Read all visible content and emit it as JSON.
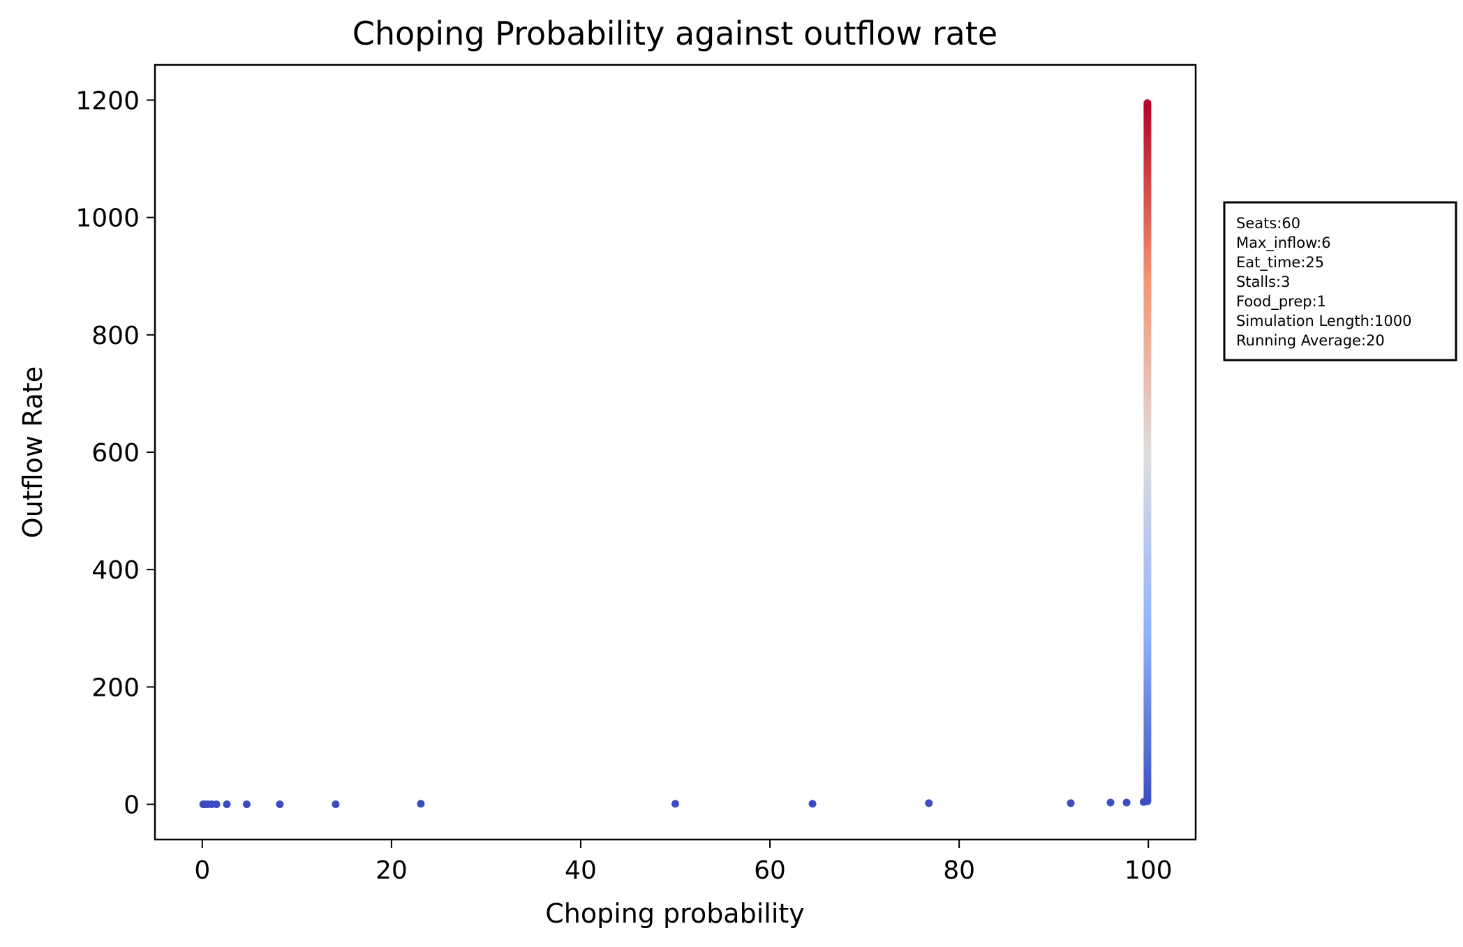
{
  "chart_data": {
    "type": "scatter",
    "title": "Choping Probability against outflow rate",
    "xlabel": "Choping probability",
    "ylabel": "Outflow Rate",
    "xlim": [
      -5,
      105
    ],
    "ylim": [
      -60,
      1260
    ],
    "x_ticks": [
      0,
      20,
      40,
      60,
      80,
      100
    ],
    "y_ticks": [
      0,
      200,
      400,
      600,
      800,
      1000,
      1200
    ],
    "colormap": "coolwarm",
    "color_by": "y",
    "color_range": [
      0,
      1200
    ],
    "points": [
      {
        "x": 0.1,
        "y": 0
      },
      {
        "x": 0.3,
        "y": 0
      },
      {
        "x": 0.6,
        "y": 0
      },
      {
        "x": 1.0,
        "y": 0
      },
      {
        "x": 1.5,
        "y": 0
      },
      {
        "x": 2.6,
        "y": 0
      },
      {
        "x": 4.7,
        "y": 0
      },
      {
        "x": 8.2,
        "y": 0
      },
      {
        "x": 14.1,
        "y": 0
      },
      {
        "x": 23.1,
        "y": 1
      },
      {
        "x": 50.0,
        "y": 1
      },
      {
        "x": 64.5,
        "y": 1
      },
      {
        "x": 76.8,
        "y": 2
      },
      {
        "x": 91.8,
        "y": 2
      },
      {
        "x": 96.0,
        "y": 3
      },
      {
        "x": 97.7,
        "y": 3
      },
      {
        "x": 99.5,
        "y": 4
      },
      {
        "x": 99.7,
        "y": 5
      }
    ],
    "vertical_cluster": {
      "x": 99.9,
      "y_min": 5,
      "y_max": 1195
    }
  },
  "legend": {
    "lines": [
      "Seats:60",
      "Max_inflow:6",
      "Eat_time:25",
      "Stalls:3",
      "Food_prep:1",
      "Simulation Length:1000",
      "Running Average:20"
    ]
  }
}
